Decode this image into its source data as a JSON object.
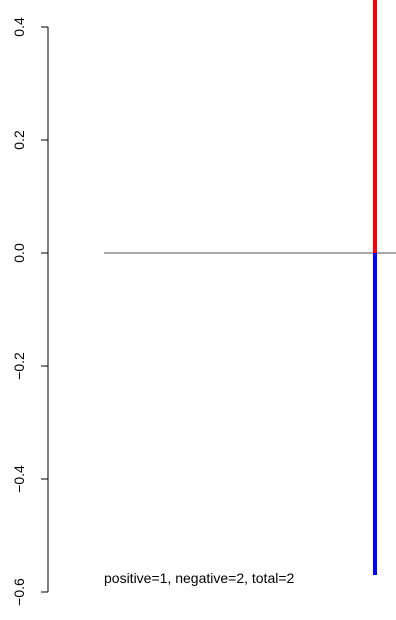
{
  "chart_data": {
    "type": "bar",
    "title": "",
    "xlabel": "",
    "ylabel": "",
    "ylim": [
      -0.6,
      0.4
    ],
    "y_ticks": [
      -0.6,
      -0.4,
      -0.2,
      0.0,
      0.2,
      0.4
    ],
    "y_tick_labels": [
      "−0.6",
      "−0.4",
      "−0.2",
      "0.0",
      "0.2",
      "0.4"
    ],
    "baseline": 0.0,
    "series": [
      {
        "color": "#ff0000",
        "values": [
          0.45
        ]
      },
      {
        "color": "#0000ff",
        "values": [
          -0.57
        ]
      }
    ],
    "annotation": "positive=1, negative=2, total=2"
  }
}
